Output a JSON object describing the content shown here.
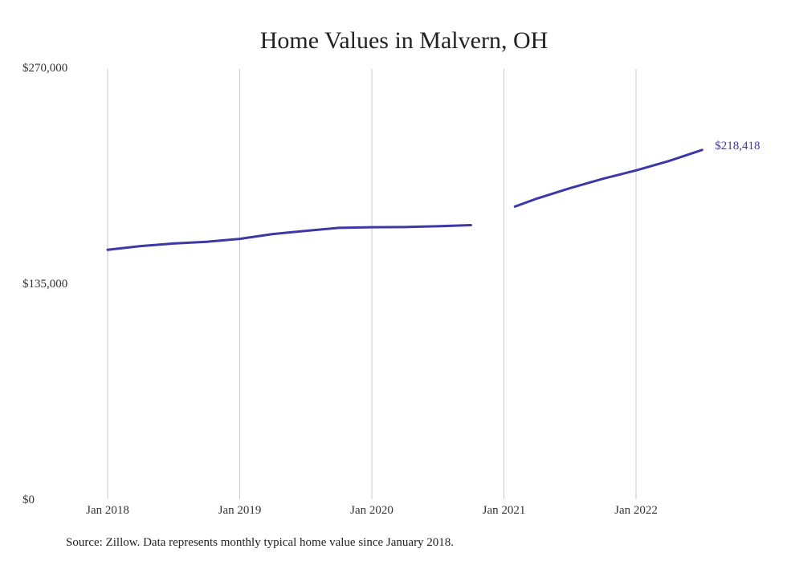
{
  "source_note": "Source: Zillow. Data represents monthly typical home value since January 2018.",
  "colors": {
    "line": "#3d38a6",
    "grid": "#c8c8c8",
    "text": "#333333"
  },
  "chart_data": {
    "type": "line",
    "title": "Home Values in Malvern, OH",
    "xlabel": "",
    "ylabel": "",
    "ylim": [
      0,
      270000
    ],
    "yticks": [
      {
        "value": 0,
        "label": "$0"
      },
      {
        "value": 135000,
        "label": "$135,000"
      },
      {
        "value": 270000,
        "label": "$270,000"
      }
    ],
    "xticks": [
      {
        "value": "2018-01",
        "label": "Jan 2018"
      },
      {
        "value": "2019-01",
        "label": "Jan 2019"
      },
      {
        "value": "2020-01",
        "label": "Jan 2020"
      },
      {
        "value": "2021-01",
        "label": "Jan 2021"
      },
      {
        "value": "2022-01",
        "label": "Jan 2022"
      }
    ],
    "grid": "vertical",
    "end_label": "$218,418",
    "series": [
      {
        "segments": [
          [
            {
              "x": "2018-01",
              "y": 156000
            },
            {
              "x": "2018-04",
              "y": 158300
            },
            {
              "x": "2018-07",
              "y": 159900
            },
            {
              "x": "2018-10",
              "y": 161000
            },
            {
              "x": "2019-01",
              "y": 162800
            },
            {
              "x": "2019-04",
              "y": 165800
            },
            {
              "x": "2019-07",
              "y": 167800
            },
            {
              "x": "2019-10",
              "y": 169700
            },
            {
              "x": "2020-01",
              "y": 170100
            },
            {
              "x": "2020-04",
              "y": 170200
            },
            {
              "x": "2020-07",
              "y": 170700
            },
            {
              "x": "2020-10",
              "y": 171400
            }
          ],
          [
            {
              "x": "2021-02",
              "y": 183000
            },
            {
              "x": "2021-04",
              "y": 188000
            },
            {
              "x": "2021-07",
              "y": 194500
            },
            {
              "x": "2021-10",
              "y": 200400
            },
            {
              "x": "2022-01",
              "y": 205600
            },
            {
              "x": "2022-04",
              "y": 211500
            },
            {
              "x": "2022-07",
              "y": 218418
            }
          ]
        ]
      }
    ]
  }
}
